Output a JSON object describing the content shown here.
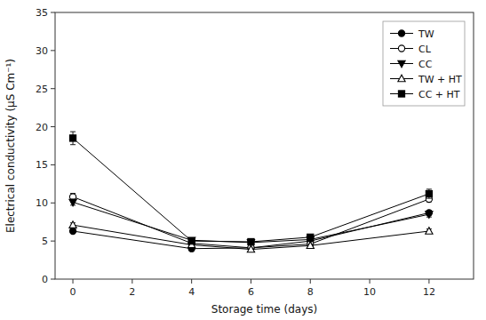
{
  "chart_data": {
    "type": "line",
    "xlabel": "Storage time (days)",
    "ylabel": "Electrical conductivity (μS Cm⁻¹)",
    "x": [
      0,
      4,
      6,
      8,
      12
    ],
    "color": "black",
    "series": [
      {
        "name": "TW",
        "marker": "circle",
        "values": [
          6.3,
          4.0,
          4.1,
          5.0,
          8.7
        ],
        "errors": [
          0.25,
          0.18,
          0.15,
          0.18,
          0.3
        ]
      },
      {
        "name": "CL",
        "marker": "circle-open",
        "values": [
          10.8,
          4.7,
          4.1,
          4.6,
          10.5
        ],
        "errors": [
          0.45,
          0.18,
          0.15,
          0.18,
          0.35
        ]
      },
      {
        "name": "CC",
        "marker": "triangle-down",
        "values": [
          10.1,
          5.1,
          4.8,
          5.2,
          8.5
        ],
        "errors": [
          0.4,
          0.18,
          0.15,
          0.18,
          0.35
        ]
      },
      {
        "name": "TW + HT",
        "marker": "triangle-up-open",
        "values": [
          7.1,
          4.5,
          3.9,
          4.4,
          6.3
        ],
        "errors": [
          0.28,
          0.18,
          0.15,
          0.18,
          0.28
        ]
      },
      {
        "name": "CC + HT",
        "marker": "square",
        "values": [
          18.5,
          5.0,
          4.9,
          5.5,
          11.2
        ],
        "errors": [
          0.85,
          0.18,
          0.15,
          0.18,
          0.6
        ]
      }
    ],
    "xlim": [
      -0.6,
      13.5
    ],
    "ylim": [
      0,
      35
    ],
    "xticks": [
      0,
      2,
      4,
      6,
      8,
      10,
      12
    ],
    "yticks": [
      0,
      5,
      10,
      15,
      20,
      25,
      30,
      35
    ],
    "legend": "upper right",
    "grid": false
  }
}
